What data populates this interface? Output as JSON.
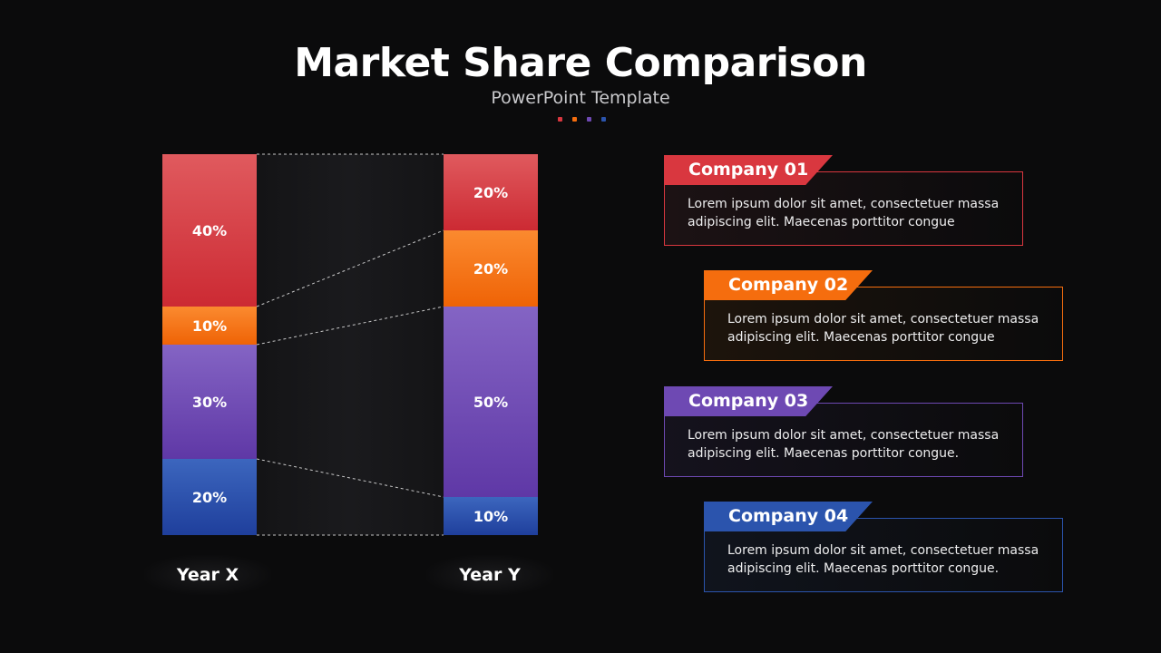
{
  "title": "Market Share Comparison",
  "subtitle": "PowerPoint Template",
  "colors": {
    "company_01": "#d9373f",
    "company_02": "#f56d0e",
    "company_03": "#6e49b3",
    "company_04": "#2b54ad",
    "text": "#ffffff",
    "background": "#0b0b0c"
  },
  "chart_data": {
    "type": "bar",
    "stacked": true,
    "categories": [
      "Year X",
      "Year Y"
    ],
    "series": [
      {
        "name": "Company 04",
        "values": [
          20,
          10
        ],
        "labels": [
          "20%",
          "10%"
        ]
      },
      {
        "name": "Company 03",
        "values": [
          30,
          50
        ],
        "labels": [
          "30%",
          "50%"
        ]
      },
      {
        "name": "Company 02",
        "values": [
          10,
          20
        ],
        "labels": [
          "10%",
          "20%"
        ]
      },
      {
        "name": "Company 01",
        "values": [
          40,
          20
        ],
        "labels": [
          "40%",
          "20%"
        ]
      }
    ],
    "ylim": [
      0,
      100
    ]
  },
  "companies": [
    {
      "name": "Company 01",
      "description": "Lorem ipsum dolor sit amet, consectetuer massa adipiscing elit. Maecenas porttitor congue"
    },
    {
      "name": "Company 02",
      "description": "Lorem ipsum dolor sit amet, consectetuer massa adipiscing elit. Maecenas porttitor congue"
    },
    {
      "name": "Company 03",
      "description": "Lorem ipsum dolor sit amet, consectetuer massa adipiscing elit. Maecenas porttitor congue."
    },
    {
      "name": "Company 04",
      "description": "Lorem ipsum dolor sit amet, consectetuer massa adipiscing elit. Maecenas porttitor congue."
    }
  ]
}
